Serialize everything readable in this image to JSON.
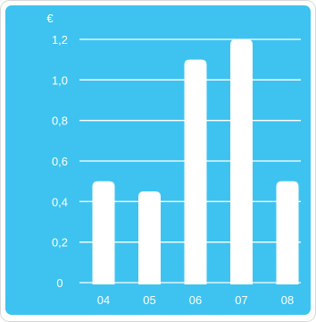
{
  "chart_data": {
    "type": "bar",
    "unit": "€",
    "categories": [
      "04",
      "05",
      "06",
      "07",
      "08"
    ],
    "values": [
      0.5,
      0.45,
      1.1,
      1.2,
      0.5
    ],
    "y_ticks": [
      0,
      0.2,
      0.4,
      0.6,
      0.8,
      1.0,
      1.2
    ],
    "y_tick_labels": [
      "0",
      "0,2",
      "0,4",
      "0,6",
      "0,8",
      "1,0",
      "1,2"
    ],
    "ylim": [
      0,
      1.2
    ],
    "grid": true,
    "colors": {
      "background": "#3ec3f0",
      "bars": "#ffffff",
      "grid": "#ffffff",
      "frame": "#d7d7d7"
    }
  }
}
